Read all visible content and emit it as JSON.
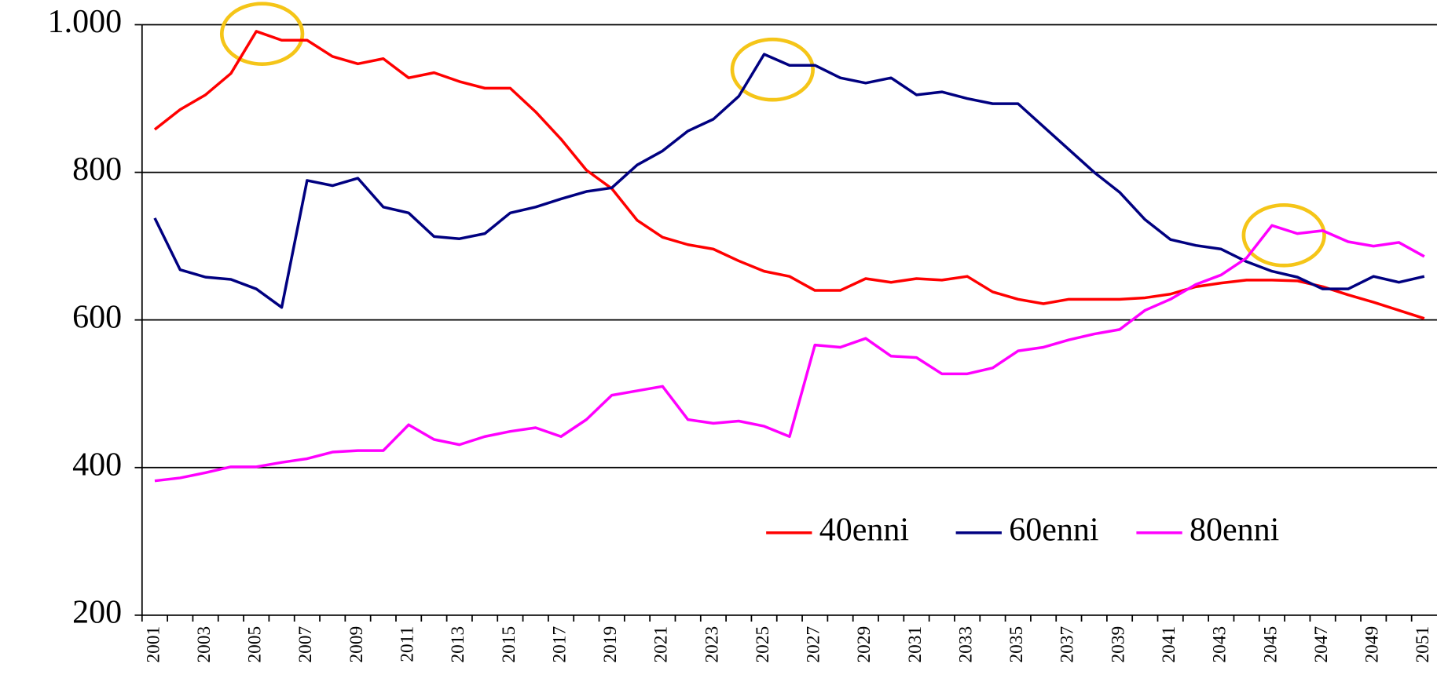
{
  "chart_data": {
    "type": "line",
    "categories": [
      "2001",
      null,
      "2003",
      null,
      "2005",
      null,
      "2007",
      null,
      "2009",
      null,
      "2011",
      null,
      "2013",
      null,
      "2015",
      null,
      "2017",
      null,
      "2019",
      null,
      "2021",
      null,
      "2023",
      null,
      "2025",
      null,
      "2027",
      null,
      "2029",
      null,
      "2031",
      null,
      "2033",
      null,
      "2035",
      null,
      "2037",
      null,
      "2039",
      null,
      "2041",
      null,
      "2043",
      null,
      "2045",
      null,
      "2047",
      null,
      "2049",
      null,
      "2051"
    ],
    "series": [
      {
        "name": "40enni",
        "color": "#ff0000",
        "values": [
          858,
          885,
          905,
          934,
          991,
          979,
          979,
          957,
          947,
          954,
          928,
          935,
          923,
          914,
          914,
          882,
          845,
          803,
          778,
          735,
          712,
          702,
          696,
          680,
          666,
          659,
          640,
          640,
          656,
          651,
          656,
          654,
          659,
          638,
          628,
          622,
          628,
          628,
          628,
          630,
          635,
          645,
          650,
          654,
          654,
          653,
          645,
          634,
          624,
          613,
          602
        ]
      },
      {
        "name": "60enni",
        "color": "#000080",
        "values": [
          738,
          668,
          658,
          655,
          642,
          617,
          789,
          782,
          792,
          753,
          745,
          713,
          710,
          717,
          745,
          753,
          764,
          774,
          779,
          810,
          829,
          856,
          872,
          903,
          960,
          945,
          945,
          928,
          921,
          928,
          905,
          909,
          900,
          893,
          893,
          862,
          831,
          800,
          773,
          736,
          709,
          701,
          696,
          679,
          666,
          658,
          642,
          642,
          659,
          651,
          659
        ]
      },
      {
        "name": "80enni",
        "color": "#ff00ff",
        "values": [
          382,
          386,
          393,
          401,
          401,
          407,
          412,
          421,
          423,
          423,
          458,
          438,
          431,
          442,
          449,
          454,
          442,
          465,
          498,
          504,
          510,
          465,
          460,
          463,
          456,
          442,
          566,
          563,
          575,
          551,
          549,
          527,
          527,
          535,
          558,
          563,
          573,
          581,
          587,
          613,
          628,
          648,
          661,
          684,
          728,
          717,
          721,
          706,
          700,
          705,
          686
        ]
      }
    ],
    "ylim": [
      200,
      1000
    ],
    "yticks": [
      200,
      400,
      600,
      800,
      {
        "value": 1000,
        "label": "1.000"
      }
    ],
    "grid": true
  }
}
